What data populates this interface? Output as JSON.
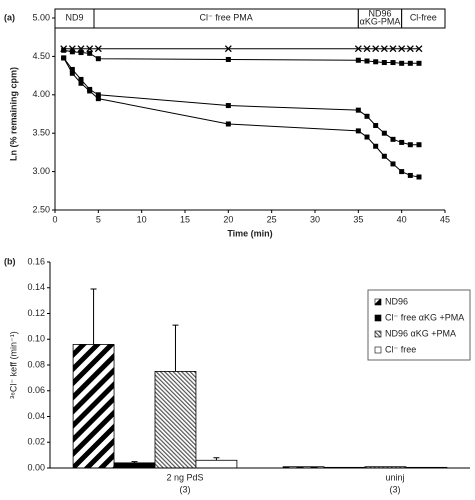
{
  "chart_data": [
    {
      "type": "line",
      "panel": "(a)",
      "xlabel": "Time (min)",
      "ylabel": "Ln (% remaining cpm)",
      "x": [
        1,
        2,
        3,
        4,
        5,
        20,
        35,
        36,
        37,
        38,
        39,
        40,
        41,
        42
      ],
      "series": [
        {
          "marker": "x",
          "color": "#000000",
          "values": [
            4.6,
            4.6,
            4.6,
            4.6,
            4.6,
            4.6,
            4.6,
            4.6,
            4.6,
            4.6,
            4.6,
            4.6,
            4.6,
            4.6
          ]
        },
        {
          "marker": "square",
          "color": "#000000",
          "values": [
            4.58,
            4.56,
            4.55,
            4.54,
            4.47,
            4.46,
            4.45,
            4.44,
            4.43,
            4.42,
            4.42,
            4.41,
            4.41,
            4.41
          ]
        },
        {
          "marker": "square",
          "color": "#000000",
          "values": [
            4.48,
            4.33,
            4.2,
            4.07,
            4.0,
            3.86,
            3.8,
            3.72,
            3.6,
            3.5,
            3.42,
            3.38,
            3.35,
            3.35
          ]
        },
        {
          "marker": "square",
          "color": "#000000",
          "values": [
            4.48,
            4.28,
            4.15,
            4.05,
            3.95,
            3.62,
            3.53,
            3.45,
            3.33,
            3.2,
            3.1,
            3.0,
            2.95,
            2.93
          ]
        }
      ],
      "bands": [
        {
          "label": [
            "ND9"
          ],
          "start": 0,
          "end": 4.5
        },
        {
          "label": [
            "Cl⁻ free PMA"
          ],
          "start": 4.5,
          "end": 35
        },
        {
          "label": [
            "ND96",
            "αKG-PMA"
          ],
          "start": 35,
          "end": 40
        },
        {
          "label": [
            "Cl-free"
          ],
          "start": 40,
          "end": 45
        }
      ],
      "xlim": [
        0,
        45
      ],
      "xticks": [
        0,
        5,
        10,
        15,
        20,
        25,
        30,
        35,
        40,
        45
      ],
      "ylim": [
        2.5,
        5.0
      ],
      "yticks": [
        {
          "value": 2.5,
          "label": "2.50"
        },
        {
          "value": 3,
          "label": "3.00"
        },
        {
          "value": 3.5,
          "label": "3.50"
        },
        {
          "value": 4,
          "label": "4.00"
        },
        {
          "value": 4.5,
          "label": "4.50"
        },
        {
          "value": 5,
          "label": "5.00"
        }
      ]
    },
    {
      "type": "bar",
      "panel": "(b)",
      "ylabel": "³⁶Cl⁻ keff (min⁻¹)",
      "categories": [
        [
          "2 ng PdS",
          "(3)"
        ],
        [
          "uninj",
          "(3)"
        ]
      ],
      "series": [
        {
          "name": "ND96",
          "color": "#000000",
          "pattern": "stripes",
          "values": [
            0.096,
            0.001
          ],
          "errors": [
            0.043,
            null
          ]
        },
        {
          "name": "Cl⁻ free αKG +PMA",
          "color": "#000000",
          "pattern": "solid",
          "values": [
            0.004,
            0.0005
          ],
          "errors": [
            0.001,
            null
          ]
        },
        {
          "name": "ND96 αKG +PMA",
          "color": "#555555",
          "pattern": "hatch",
          "values": [
            0.075,
            0.001
          ],
          "errors": [
            0.036,
            null
          ]
        },
        {
          "name": "Cl⁻ free",
          "color": "#ffffff",
          "pattern": "solid",
          "values": [
            0.006,
            0.0005
          ],
          "errors": [
            0.002,
            null
          ]
        }
      ],
      "ylim": [
        0,
        0.16
      ],
      "yticks": [
        {
          "value": 0,
          "label": "0.00"
        },
        0.02,
        0.04,
        0.06,
        0.08,
        {
          "value": 0.1,
          "label": "0.10"
        },
        0.12,
        0.14,
        0.16
      ]
    }
  ]
}
